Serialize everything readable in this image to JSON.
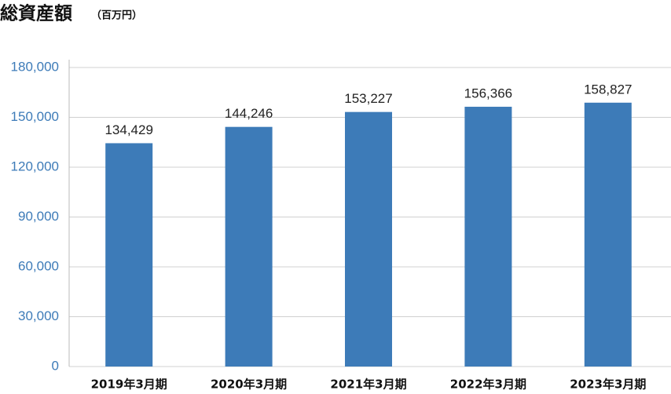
{
  "chart_data": {
    "type": "bar",
    "title": "総資産額",
    "subtitle": "（百万円）",
    "categories": [
      "2019年3月期",
      "2020年3月期",
      "2021年3月期",
      "2022年3月期",
      "2023年3月期"
    ],
    "values": [
      134429,
      144246,
      153227,
      156366,
      158827
    ],
    "value_labels": [
      "134,429",
      "144,246",
      "153,227",
      "156,366",
      "158,827"
    ],
    "color": "#3d7bb8",
    "ylim": [
      0,
      180000
    ],
    "yticks": [
      0,
      {
        "value": 30000,
        "label": "30,000"
      },
      {
        "value": 60000,
        "label": "60,000"
      },
      {
        "value": 90000,
        "label": "90,000"
      },
      {
        "value": 120000,
        "label": "120,000"
      },
      {
        "value": 150000,
        "label": "150,000"
      },
      {
        "value": 180000,
        "label": "180,000"
      }
    ],
    "grid": true
  }
}
